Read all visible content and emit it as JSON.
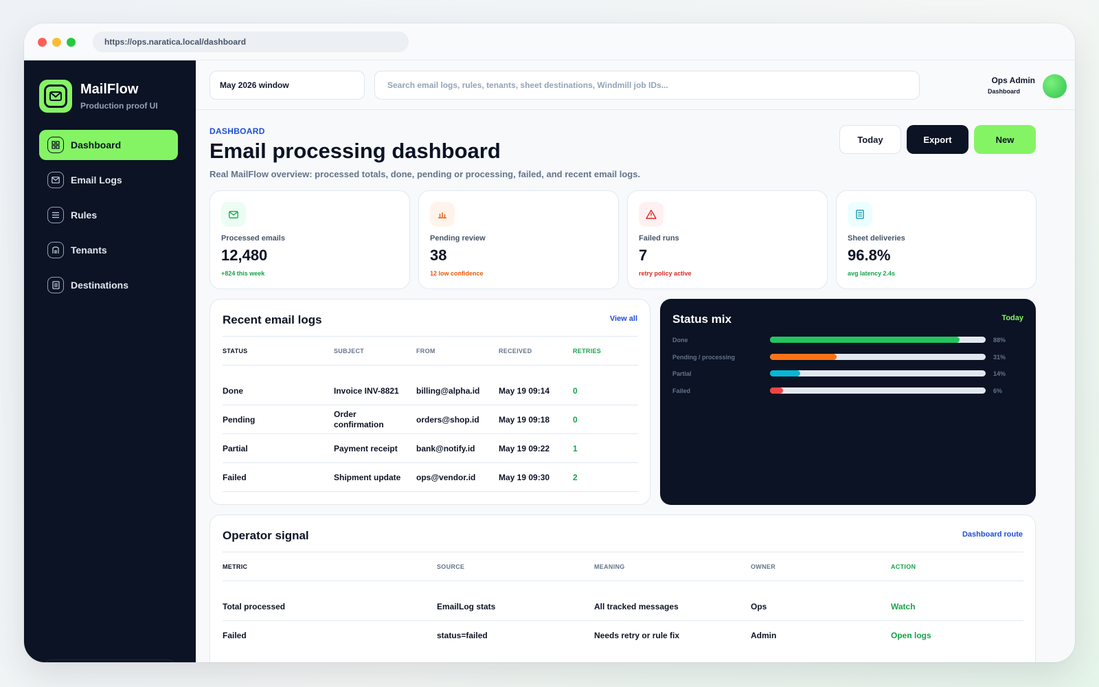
{
  "browser": {
    "url": "https://ops.naratica.local/dashboard"
  },
  "brand": {
    "name": "MailFlow",
    "subtitle": "Production proof UI"
  },
  "sidebar": {
    "items": [
      {
        "label": "Dashboard",
        "icon": "dashboard-icon",
        "active": true
      },
      {
        "label": "Email Logs",
        "icon": "mail-icon",
        "active": false
      },
      {
        "label": "Rules",
        "icon": "list-icon",
        "active": false
      },
      {
        "label": "Tenants",
        "icon": "building-icon",
        "active": false
      },
      {
        "label": "Destinations",
        "icon": "sheet-icon",
        "active": false
      }
    ]
  },
  "topbar": {
    "period": "May 2026 window",
    "search_placeholder": "Search email logs, rules, tenants, sheet destinations, Windmill job IDs...",
    "user_name": "Ops Admin",
    "user_role": "Dashboard"
  },
  "header": {
    "eyebrow": "DASHBOARD",
    "title": "Email processing dashboard",
    "description": "Real MailFlow overview: processed totals, done, pending or processing, failed, and recent email logs.",
    "today_label": "Today",
    "export_label": "Export",
    "new_label": "New"
  },
  "stats": [
    {
      "label": "Processed emails",
      "value": "12,480",
      "note": "+824 this week",
      "icon": "mail-icon",
      "note_color": "#16a34a",
      "icon_bg": "#ecfdf3",
      "icon_color": "#16a34a"
    },
    {
      "label": "Pending review",
      "value": "38",
      "note": "12 low confidence",
      "icon": "bar-chart-icon",
      "note_color": "#ea580c",
      "icon_bg": "#fff4ec",
      "icon_color": "#ea580c"
    },
    {
      "label": "Failed runs",
      "value": "7",
      "note": "retry policy active",
      "icon": "warning-icon",
      "note_color": "#dc2626",
      "icon_bg": "#fff1f2",
      "icon_color": "#dc2626"
    },
    {
      "label": "Sheet deliveries",
      "value": "96.8%",
      "note": "avg latency 2.4s",
      "icon": "document-icon",
      "note_color": "#16a34a",
      "icon_bg": "#ecfeff",
      "icon_color": "#0891b2"
    }
  ],
  "recent_logs": {
    "title": "Recent email logs",
    "link": "View all",
    "columns": [
      "STATUS",
      "SUBJECT",
      "FROM",
      "RECEIVED",
      "RETRIES"
    ],
    "rows": [
      {
        "status": "Done",
        "subject": "Invoice INV-8821",
        "from": "billing@alpha.id",
        "received": "May 19 09:14",
        "retries": "0"
      },
      {
        "status": "Pending",
        "subject": "Order confirmation",
        "from": "orders@shop.id",
        "received": "May 19 09:18",
        "retries": "0"
      },
      {
        "status": "Partial",
        "subject": "Payment receipt",
        "from": "bank@notify.id",
        "received": "May 19 09:22",
        "retries": "1"
      },
      {
        "status": "Failed",
        "subject": "Shipment update",
        "from": "ops@vendor.id",
        "received": "May 19 09:30",
        "retries": "2"
      }
    ]
  },
  "status_mix": {
    "title": "Status mix",
    "period": "Today",
    "items": [
      {
        "label": "Done",
        "pct_label": "88%",
        "fraction": 0.88,
        "color": "#22c55e"
      },
      {
        "label": "Pending / processing",
        "pct_label": "31%",
        "fraction": 0.31,
        "color": "#f97316"
      },
      {
        "label": "Partial",
        "pct_label": "14%",
        "fraction": 0.14,
        "color": "#06b6d4"
      },
      {
        "label": "Failed",
        "pct_label": "6%",
        "fraction": 0.06,
        "color": "#ef4444"
      }
    ]
  },
  "operator_signal": {
    "title": "Operator signal",
    "link": "Dashboard route",
    "columns": [
      "METRIC",
      "SOURCE",
      "MEANING",
      "OWNER",
      "ACTION"
    ],
    "rows": [
      {
        "metric": "Total processed",
        "source": "EmailLog stats",
        "meaning": "All tracked messages",
        "owner": "Ops",
        "action": "Watch"
      },
      {
        "metric": "Failed",
        "source": "status=failed",
        "meaning": "Needs retry or rule fix",
        "owner": "Admin",
        "action": "Open logs"
      }
    ]
  },
  "colors": {
    "accent": "#84f464",
    "sidebar": "#0b1324",
    "link": "#1d4ed8"
  }
}
